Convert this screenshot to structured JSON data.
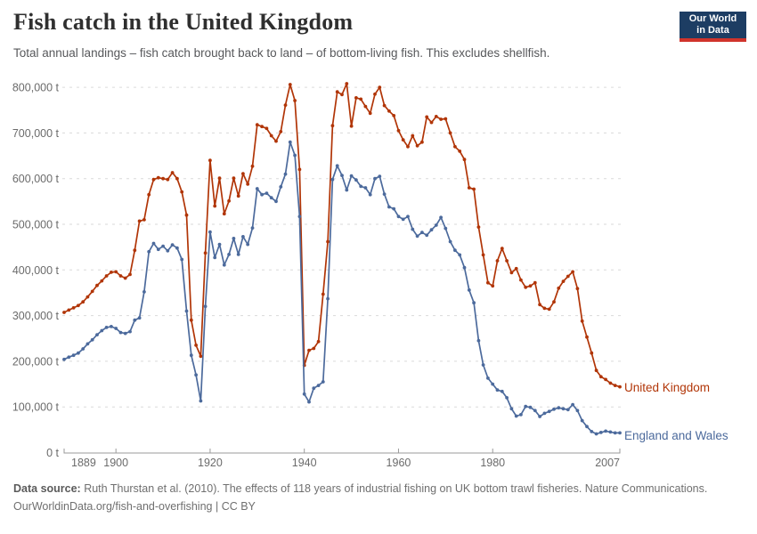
{
  "header": {
    "title": "Fish catch in the United Kingdom",
    "subtitle": "Total annual landings – fish catch brought back to land – of bottom-living fish. This excludes shellfish.",
    "logo": {
      "line1": "Our World",
      "line2": "in Data",
      "bg_color": "#1d3d63",
      "accent_color": "#d0342c"
    }
  },
  "chart_data": {
    "type": "line",
    "title": "Fish catch in the United Kingdom",
    "xlabel": "",
    "ylabel": "",
    "unit": "tonnes",
    "values_unit": "thousand tonnes",
    "x_start": 1889,
    "x_end": 2007,
    "xticks": [
      1889,
      1900,
      1920,
      1940,
      1960,
      1980,
      2007
    ],
    "yticks_thousand_tonnes": [
      0,
      100,
      200,
      300,
      400,
      500,
      600,
      700,
      800
    ],
    "ylim_thousand_tonnes": [
      0,
      800
    ],
    "grid": "horizontal-dashed",
    "grid_color": "#dadada",
    "axis_color": "#9a9a9a",
    "tick_label_color": "#6b6b6b",
    "legend_position": "end-of-line-labels",
    "series": [
      {
        "name": "United Kingdom",
        "color": "#b13507",
        "values": [
          307,
          312,
          317,
          322,
          330,
          341,
          353,
          366,
          376,
          387,
          395,
          396,
          387,
          382,
          390,
          443,
          507,
          510,
          565,
          598,
          602,
          600,
          598,
          613,
          600,
          571,
          520,
          290,
          235,
          211,
          437,
          640,
          540,
          601,
          523,
          551,
          601,
          562,
          611,
          588,
          627,
          718,
          714,
          710,
          694,
          682,
          703,
          761,
          806,
          771,
          620,
          191,
          224,
          228,
          243,
          347,
          462,
          716,
          790,
          784,
          808,
          715,
          777,
          774,
          758,
          743,
          785,
          800,
          760,
          748,
          738,
          705,
          685,
          670,
          694,
          672,
          680,
          735,
          723,
          736,
          730,
          731,
          700,
          670,
          660,
          642,
          580,
          577,
          494,
          433,
          372,
          365,
          420,
          447,
          420,
          394,
          403,
          378,
          362,
          365,
          372,
          324,
          316,
          314,
          330,
          360,
          375,
          386,
          396,
          359,
          288,
          253,
          218,
          180,
          166,
          160,
          152,
          147,
          144
        ]
      },
      {
        "name": "England and Wales",
        "color": "#4c6a9c",
        "values": [
          204,
          209,
          213,
          218,
          227,
          238,
          247,
          258,
          267,
          274,
          276,
          272,
          263,
          261,
          265,
          290,
          295,
          352,
          440,
          458,
          445,
          452,
          442,
          455,
          448,
          423,
          310,
          213,
          170,
          113,
          320,
          483,
          427,
          456,
          411,
          434,
          469,
          434,
          473,
          456,
          492,
          578,
          565,
          568,
          558,
          550,
          582,
          610,
          680,
          651,
          517,
          128,
          111,
          141,
          147,
          155,
          337,
          598,
          628,
          607,
          575,
          606,
          597,
          583,
          580,
          565,
          600,
          605,
          566,
          538,
          534,
          517,
          511,
          517,
          489,
          474,
          482,
          476,
          488,
          498,
          515,
          491,
          462,
          443,
          433,
          405,
          356,
          328,
          245,
          192,
          163,
          150,
          137,
          134,
          120,
          96,
          80,
          83,
          101,
          99,
          92,
          79,
          86,
          90,
          95,
          98,
          96,
          94,
          105,
          92,
          70,
          57,
          46,
          41,
          44,
          47,
          45,
          43,
          43
        ]
      }
    ]
  },
  "footer": {
    "source_label": "Data source:",
    "source_text": " Ruth Thurstan et al. (2010). The effects of 118 years of industrial fishing on UK bottom trawl fisheries. Nature Communications.",
    "link": "OurWorldinData.org/fish-and-overfishing",
    "separator": " | ",
    "license": "CC BY"
  }
}
